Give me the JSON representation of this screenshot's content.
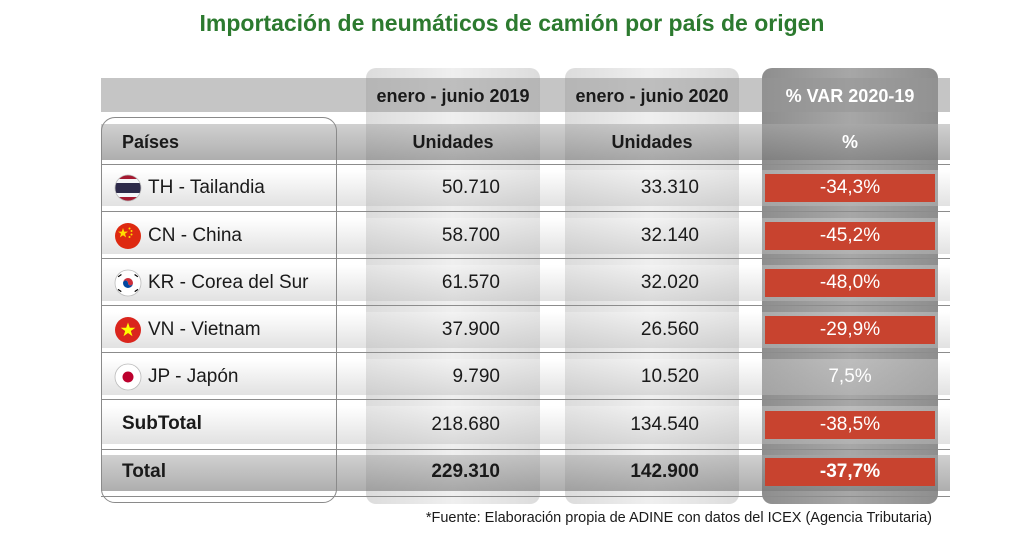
{
  "title": "Importación de neumáticos de camión por país de origen",
  "headers": {
    "period_2019": "enero - junio 2019",
    "period_2020": "enero - junio 2020",
    "variation": "% VAR 2020-19",
    "countries": "Países",
    "units_2019": "Unidades",
    "units_2020": "Unidades",
    "percent": "%"
  },
  "rows": [
    {
      "country": "TH - Tailandia",
      "flag": "thailand-flag-icon",
      "v2019": "50.710",
      "v2020": "33.310",
      "var": "-34,3%"
    },
    {
      "country": "CN - China",
      "flag": "china-flag-icon",
      "v2019": "58.700",
      "v2020": "32.140",
      "var": "-45,2%"
    },
    {
      "country": "KR - Corea del Sur",
      "flag": "south-korea-flag-icon",
      "v2019": "61.570",
      "v2020": "32.020",
      "var": "-48,0%"
    },
    {
      "country": "VN - Vietnam",
      "flag": "vietnam-flag-icon",
      "v2019": "37.900",
      "v2020": "26.560",
      "var": "-29,9%"
    },
    {
      "country": "JP - Japón",
      "flag": "japan-flag-icon",
      "v2019": "9.790",
      "v2020": "10.520",
      "var": "7,5%"
    }
  ],
  "subtotal": {
    "label": "SubTotal",
    "v2019": "218.680",
    "v2020": "134.540",
    "var": "-38,5%"
  },
  "total": {
    "label": "Total",
    "v2019": "229.310",
    "v2020": "142.900",
    "var": "-37,7%"
  },
  "footnote": "*Fuente: Elaboración propia de ADINE con datos del ICEX (Agencia Tributaria)",
  "colors": {
    "title": "#2c7a2f",
    "negative": "#c8432f"
  },
  "chart_data": {
    "type": "table",
    "title": "Importación de neumáticos de camión por país de origen",
    "columns": [
      "Países",
      "enero - junio 2019 (Unidades)",
      "enero - junio 2020 (Unidades)",
      "% VAR 2020-19"
    ],
    "categories": [
      "TH - Tailandia",
      "CN - China",
      "KR - Corea del Sur",
      "VN - Vietnam",
      "JP - Japón",
      "SubTotal",
      "Total"
    ],
    "series": [
      {
        "name": "enero - junio 2019",
        "values": [
          50710,
          58700,
          61570,
          37900,
          9790,
          218680,
          229310
        ]
      },
      {
        "name": "enero - junio 2020",
        "values": [
          33310,
          32140,
          32020,
          26560,
          10520,
          134540,
          142900
        ]
      },
      {
        "name": "% VAR 2020-19",
        "values": [
          -34.3,
          -45.2,
          -48.0,
          -29.9,
          7.5,
          -38.5,
          -37.7
        ]
      }
    ]
  }
}
